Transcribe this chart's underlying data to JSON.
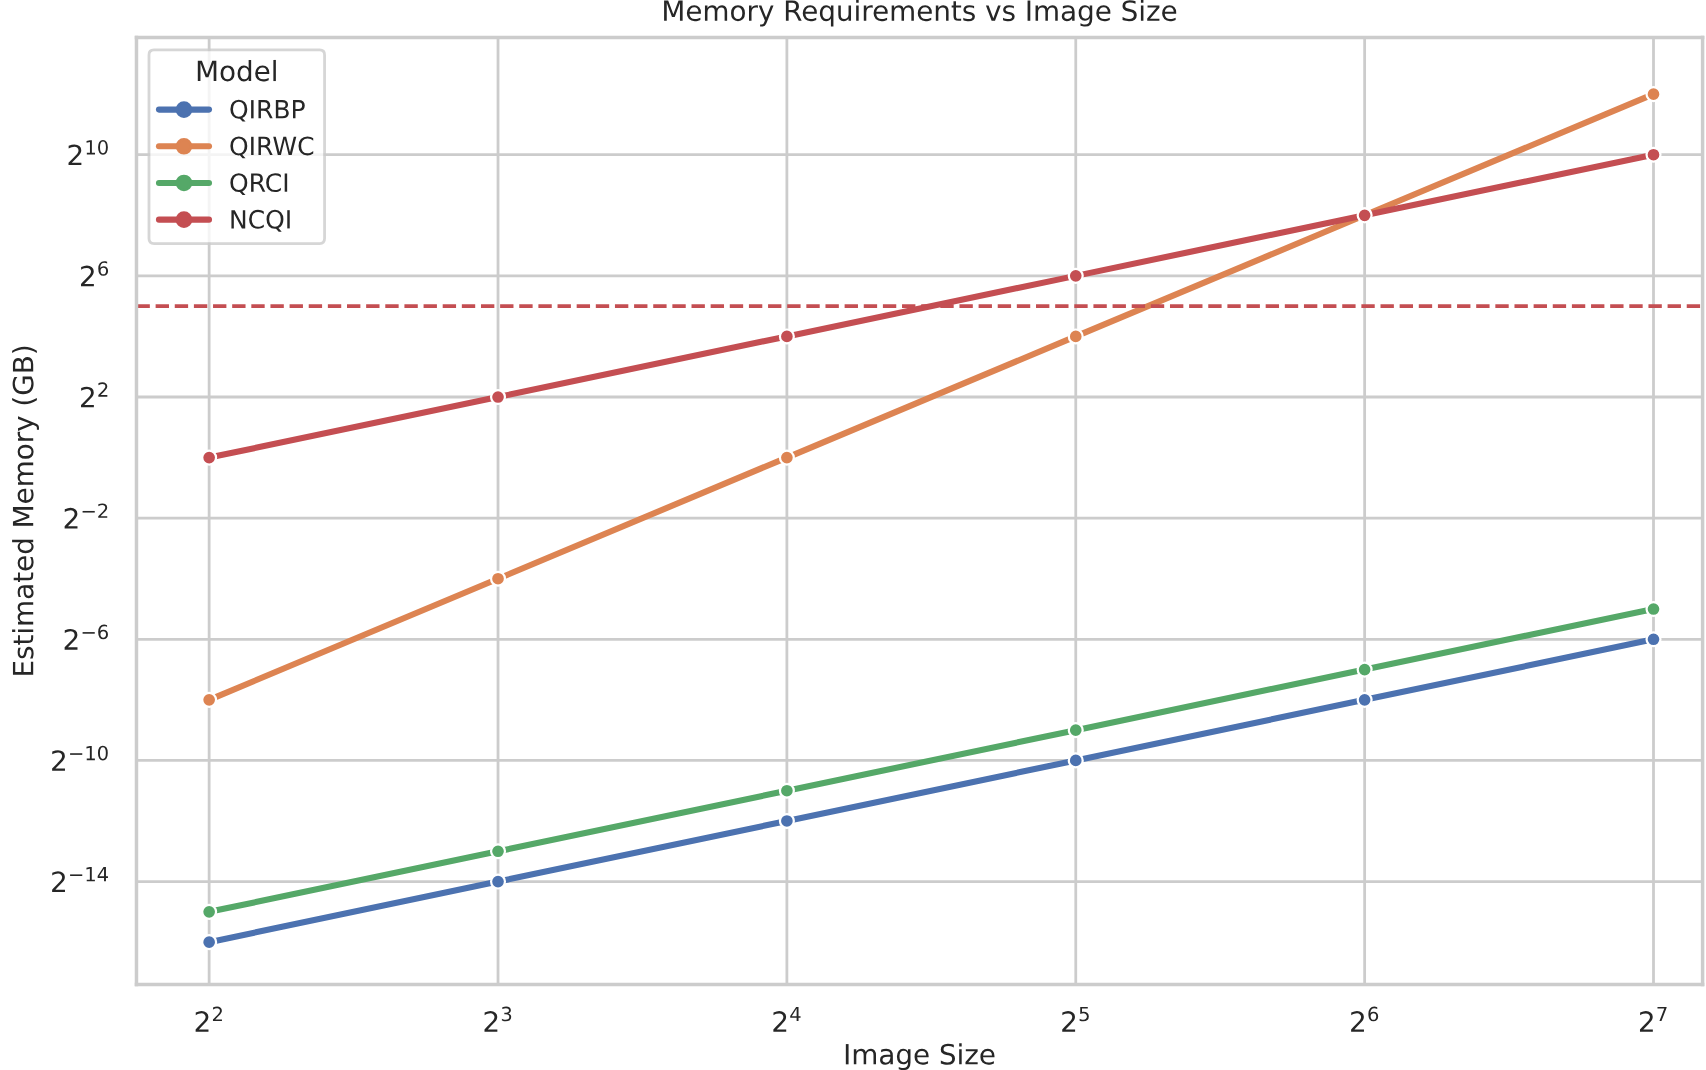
{
  "chart_data": {
    "type": "line",
    "title": "Memory Requirements vs Image Size",
    "xlabel": "Image Size",
    "ylabel": "Estimated Memory (GB)",
    "legend_title": "Model",
    "x": [
      4,
      8,
      16,
      32,
      64,
      128
    ],
    "series": [
      {
        "name": "QIRBP",
        "color": "#4c72b0",
        "values": [
          1.52587890625e-05,
          6.103515625e-05,
          0.000244140625,
          0.0009765625,
          0.00390625,
          0.015625
        ]
      },
      {
        "name": "QIRWC",
        "color": "#dd8452",
        "values": [
          0.00390625,
          0.0625,
          1,
          16,
          256,
          4096
        ]
      },
      {
        "name": "QRCI",
        "color": "#55a868",
        "values": [
          3.0517578125e-05,
          0.0001220703125,
          0.00048828125,
          0.001953125,
          0.0078125,
          0.03125
        ]
      },
      {
        "name": "NCQI",
        "color": "#c44e52",
        "values": [
          1,
          4,
          16,
          64,
          256,
          1024
        ]
      }
    ],
    "log": "xy",
    "xlim": [
      3.36,
      144
    ],
    "ylim": [
      5.8e-06,
      15000
    ],
    "xticks": [
      {
        "value": 4,
        "label": "2$^{2}$"
      },
      {
        "value": 8,
        "label": "2$^{3}$"
      },
      {
        "value": 16,
        "label": "2$^{4}$"
      },
      {
        "value": 32,
        "label": "2$^{5}$"
      },
      {
        "value": 64,
        "label": "2$^{6}$"
      },
      {
        "value": 128,
        "label": "2$^{7}$"
      }
    ],
    "yticks": [
      {
        "value": 6.103515625e-05,
        "label": "2$^{−14}$"
      },
      {
        "value": 0.0009765625,
        "label": "2$^{−10}$"
      },
      {
        "value": 0.015625,
        "label": "2$^{−6}$"
      },
      {
        "value": 0.25,
        "label": "2$^{−2}$"
      },
      {
        "value": 4,
        "label": "2$^{2}$"
      },
      {
        "value": 64,
        "label": "2$^{6}$"
      },
      {
        "value": 1024,
        "label": "2$^{10}$"
      }
    ],
    "ref_lines": [
      {
        "axis": "y",
        "value": 32,
        "label": null,
        "color": "#c44e52",
        "line_style": "dashed"
      }
    ],
    "grid": true,
    "legend": "top left",
    "marker": "circle",
    "line_style": "solid"
  }
}
